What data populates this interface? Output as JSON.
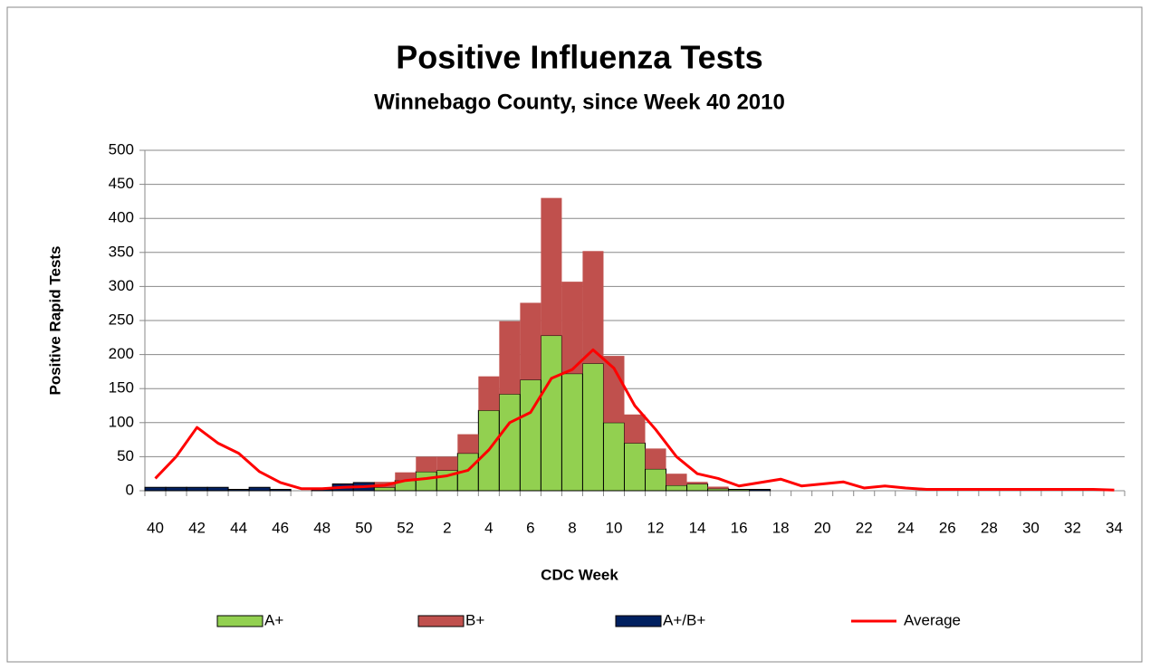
{
  "chart_data": {
    "type": "bar",
    "stacked": true,
    "title": "Positive Influenza Tests",
    "subtitle": "Winnebago County, since Week 40 2010",
    "x_label": "CDC Week",
    "y_label": "Positive Rapid Tests",
    "categories": [
      "40",
      null,
      "42",
      null,
      "44",
      null,
      "46",
      null,
      "48",
      null,
      "50",
      null,
      "52",
      null,
      "2",
      null,
      "4",
      null,
      "6",
      null,
      "8",
      null,
      "10",
      null,
      "12",
      null,
      "14",
      null,
      "16",
      null,
      "18",
      null,
      "20",
      null,
      "22",
      null,
      "24",
      null,
      "26",
      null,
      "28",
      null,
      "30",
      null,
      "32",
      null,
      "34"
    ],
    "series": [
      {
        "name": "A+",
        "color": "#92d050",
        "values": [
          0,
          0,
          0,
          0,
          0,
          0,
          0,
          0,
          0,
          0,
          0,
          5,
          15,
          28,
          30,
          55,
          118,
          142,
          163,
          228,
          172,
          187,
          100,
          70,
          32,
          8,
          10,
          3,
          2,
          0,
          0,
          0,
          0,
          0,
          0,
          0,
          0,
          0,
          0,
          0,
          0,
          0,
          0,
          0,
          0,
          0,
          0
        ]
      },
      {
        "name": "B+",
        "color": "#c0504d",
        "values": [
          0,
          0,
          0,
          0,
          0,
          0,
          0,
          0,
          0,
          0,
          0,
          8,
          12,
          22,
          20,
          28,
          50,
          107,
          113,
          202,
          135,
          165,
          98,
          42,
          30,
          17,
          3,
          3,
          0,
          0,
          0,
          0,
          0,
          0,
          0,
          0,
          0,
          0,
          0,
          0,
          0,
          0,
          0,
          0,
          0,
          0,
          0
        ]
      },
      {
        "name": "A+/B+",
        "color": "#002060",
        "values": [
          5,
          5,
          5,
          5,
          2,
          5,
          2,
          0,
          2,
          10,
          12,
          0,
          0,
          0,
          0,
          0,
          0,
          0,
          0,
          0,
          0,
          0,
          0,
          0,
          0,
          0,
          0,
          0,
          0,
          2,
          0,
          0,
          0,
          0,
          0,
          0,
          0,
          0,
          0,
          0,
          0,
          0,
          0,
          0,
          0,
          0,
          0
        ]
      },
      {
        "name": "Average",
        "color": "#ff0000",
        "type": "line",
        "values": [
          18,
          50,
          93,
          70,
          55,
          28,
          12,
          3,
          3,
          5,
          6,
          8,
          15,
          18,
          22,
          30,
          60,
          100,
          115,
          165,
          178,
          207,
          180,
          125,
          90,
          50,
          25,
          18,
          7,
          12,
          17,
          7,
          10,
          13,
          4,
          7,
          4,
          2,
          2,
          2,
          2,
          2,
          2,
          2,
          2,
          2,
          1
        ]
      }
    ],
    "ylim": [
      0,
      500
    ],
    "yticks": [
      0,
      50,
      100,
      150,
      200,
      250,
      300,
      350,
      400,
      450,
      500
    ],
    "grid": true
  }
}
